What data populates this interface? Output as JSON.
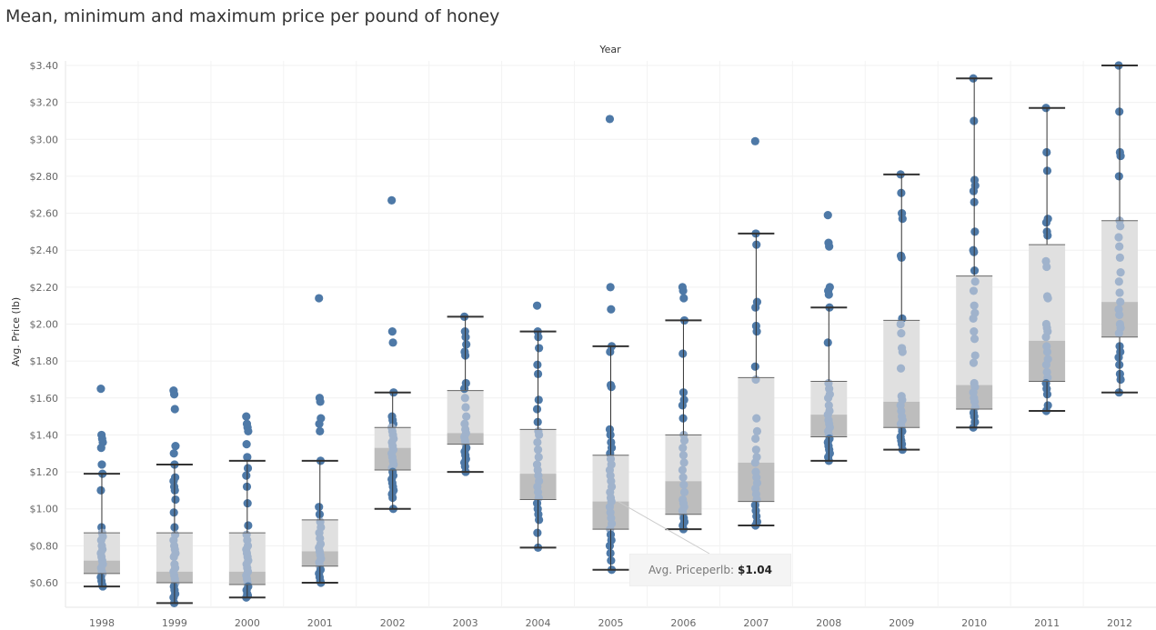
{
  "title": "Mean, minimum and maximum price per pound of honey",
  "tooltip": {
    "label": "Avg. Priceperlb:",
    "value": "$1.04",
    "year": "2005"
  },
  "colors": {
    "dot": "#4e79a7",
    "dot_in_box": "#a0b3cc",
    "box_upper": "#e0e0e0",
    "box_lower": "#bdbdbd",
    "whisker": "#333333",
    "grid": "#f0f0f0"
  },
  "chart_data": {
    "type": "box-plot with jittered points",
    "title": "Mean, minimum and maximum price per pound of honey",
    "top_axis_label": "Year",
    "ylabel": "Avg. Price (lb)",
    "ylim": [
      0.48,
      3.42
    ],
    "y_ticks": [
      "$0.60",
      "$0.80",
      "$1.00",
      "$1.20",
      "$1.40",
      "$1.60",
      "$1.80",
      "$2.00",
      "$2.20",
      "$2.40",
      "$2.60",
      "$2.80",
      "$3.00",
      "$3.20",
      "$3.40"
    ],
    "y_tick_values": [
      0.6,
      0.8,
      1.0,
      1.2,
      1.4,
      1.6,
      1.8,
      2.0,
      2.2,
      2.4,
      2.6,
      2.8,
      3.0,
      3.2,
      3.4
    ],
    "grid": true,
    "categories": [
      "1998",
      "1999",
      "2000",
      "2001",
      "2002",
      "2003",
      "2004",
      "2005",
      "2006",
      "2007",
      "2008",
      "2009",
      "2010",
      "2011",
      "2012"
    ],
    "boxes": [
      {
        "year": "1998",
        "whisker_low": 0.58,
        "q1": 0.65,
        "median": 0.72,
        "q3": 0.87,
        "whisker_high": 1.19
      },
      {
        "year": "1999",
        "whisker_low": 0.49,
        "q1": 0.6,
        "median": 0.66,
        "q3": 0.87,
        "whisker_high": 1.24
      },
      {
        "year": "2000",
        "whisker_low": 0.52,
        "q1": 0.59,
        "median": 0.66,
        "q3": 0.87,
        "whisker_high": 1.26
      },
      {
        "year": "2001",
        "whisker_low": 0.6,
        "q1": 0.69,
        "median": 0.77,
        "q3": 0.94,
        "whisker_high": 1.26
      },
      {
        "year": "2002",
        "whisker_low": 1.0,
        "q1": 1.21,
        "median": 1.33,
        "q3": 1.44,
        "whisker_high": 1.63
      },
      {
        "year": "2003",
        "whisker_low": 1.2,
        "q1": 1.35,
        "median": 1.41,
        "q3": 1.64,
        "whisker_high": 2.04
      },
      {
        "year": "2004",
        "whisker_low": 0.79,
        "q1": 1.05,
        "median": 1.19,
        "q3": 1.43,
        "whisker_high": 1.96
      },
      {
        "year": "2005",
        "whisker_low": 0.67,
        "q1": 0.89,
        "median": 1.04,
        "q3": 1.29,
        "whisker_high": 1.88
      },
      {
        "year": "2006",
        "whisker_low": 0.89,
        "q1": 0.97,
        "median": 1.15,
        "q3": 1.4,
        "whisker_high": 2.02
      },
      {
        "year": "2007",
        "whisker_low": 0.91,
        "q1": 1.04,
        "median": 1.25,
        "q3": 1.71,
        "whisker_high": 2.49
      },
      {
        "year": "2008",
        "whisker_low": 1.26,
        "q1": 1.39,
        "median": 1.51,
        "q3": 1.69,
        "whisker_high": 2.09
      },
      {
        "year": "2009",
        "whisker_low": 1.32,
        "q1": 1.44,
        "median": 1.58,
        "q3": 2.02,
        "whisker_high": 2.81
      },
      {
        "year": "2010",
        "whisker_low": 1.44,
        "q1": 1.54,
        "median": 1.67,
        "q3": 2.26,
        "whisker_high": 3.33
      },
      {
        "year": "2011",
        "whisker_low": 1.53,
        "q1": 1.69,
        "median": 1.91,
        "q3": 2.43,
        "whisker_high": 3.17
      },
      {
        "year": "2012",
        "whisker_low": 1.63,
        "q1": 1.93,
        "median": 2.12,
        "q3": 2.56,
        "whisker_high": 3.4
      }
    ],
    "points": [
      {
        "year": "1998",
        "values": [
          1.65,
          1.4,
          1.38,
          1.36,
          1.33,
          1.24,
          1.19,
          1.1,
          0.9,
          0.87,
          0.85,
          0.83,
          0.8,
          0.78,
          0.76,
          0.74,
          0.72,
          0.7,
          0.68,
          0.66,
          0.65,
          0.63,
          0.61,
          0.59,
          0.58
        ]
      },
      {
        "year": "1999",
        "values": [
          1.64,
          1.62,
          1.54,
          1.34,
          1.3,
          1.24,
          1.17,
          1.15,
          1.12,
          1.1,
          1.05,
          0.98,
          0.9,
          0.86,
          0.83,
          0.8,
          0.78,
          0.76,
          0.74,
          0.7,
          0.68,
          0.66,
          0.64,
          0.62,
          0.6,
          0.58,
          0.56,
          0.54,
          0.52,
          0.49
        ]
      },
      {
        "year": "2000",
        "values": [
          1.5,
          1.46,
          1.44,
          1.42,
          1.35,
          1.28,
          1.22,
          1.18,
          1.12,
          1.03,
          0.91,
          0.86,
          0.83,
          0.8,
          0.78,
          0.76,
          0.74,
          0.72,
          0.7,
          0.68,
          0.66,
          0.64,
          0.62,
          0.6,
          0.58,
          0.56,
          0.54,
          0.53,
          0.52
        ]
      },
      {
        "year": "2001",
        "values": [
          2.14,
          1.6,
          1.58,
          1.49,
          1.46,
          1.42,
          1.26,
          1.01,
          0.97,
          0.93,
          0.9,
          0.87,
          0.84,
          0.81,
          0.79,
          0.77,
          0.75,
          0.73,
          0.71,
          0.69,
          0.67,
          0.65,
          0.63,
          0.61,
          0.6
        ]
      },
      {
        "year": "2002",
        "values": [
          2.67,
          1.96,
          1.9,
          1.63,
          1.5,
          1.48,
          1.46,
          1.44,
          1.42,
          1.4,
          1.38,
          1.36,
          1.34,
          1.32,
          1.3,
          1.28,
          1.26,
          1.24,
          1.22,
          1.2,
          1.18,
          1.16,
          1.14,
          1.12,
          1.1,
          1.08,
          1.06,
          1.0
        ]
      },
      {
        "year": "2003",
        "values": [
          2.04,
          1.96,
          1.93,
          1.89,
          1.85,
          1.83,
          1.68,
          1.65,
          1.6,
          1.55,
          1.5,
          1.46,
          1.43,
          1.41,
          1.39,
          1.37,
          1.35,
          1.33,
          1.31,
          1.29,
          1.27,
          1.25,
          1.23,
          1.2
        ]
      },
      {
        "year": "2004",
        "values": [
          2.1,
          1.96,
          1.93,
          1.87,
          1.78,
          1.73,
          1.59,
          1.54,
          1.47,
          1.42,
          1.4,
          1.36,
          1.32,
          1.28,
          1.24,
          1.21,
          1.18,
          1.15,
          1.12,
          1.09,
          1.06,
          1.03,
          1.0,
          0.97,
          0.94,
          0.87,
          0.79
        ]
      },
      {
        "year": "2005",
        "values": [
          3.11,
          2.2,
          2.08,
          1.88,
          1.85,
          1.67,
          1.66,
          1.43,
          1.4,
          1.36,
          1.33,
          1.3,
          1.27,
          1.24,
          1.21,
          1.18,
          1.15,
          1.12,
          1.09,
          1.06,
          1.04,
          1.01,
          0.98,
          0.95,
          0.92,
          0.89,
          0.86,
          0.83,
          0.8,
          0.76,
          0.72,
          0.67
        ]
      },
      {
        "year": "2006",
        "values": [
          2.2,
          2.18,
          2.14,
          2.02,
          1.84,
          1.63,
          1.59,
          1.56,
          1.49,
          1.4,
          1.37,
          1.33,
          1.29,
          1.25,
          1.21,
          1.17,
          1.13,
          1.09,
          1.05,
          1.03,
          1.01,
          0.99,
          0.97,
          0.95,
          0.93,
          0.91,
          0.89
        ]
      },
      {
        "year": "2007",
        "values": [
          2.99,
          2.49,
          2.43,
          2.12,
          2.09,
          1.99,
          1.96,
          1.77,
          1.7,
          1.49,
          1.42,
          1.38,
          1.32,
          1.28,
          1.25,
          1.2,
          1.17,
          1.14,
          1.11,
          1.08,
          1.05,
          1.02,
          0.99,
          0.96,
          0.93,
          0.91
        ]
      },
      {
        "year": "2008",
        "values": [
          2.59,
          2.44,
          2.42,
          2.2,
          2.18,
          2.16,
          2.09,
          1.9,
          1.68,
          1.65,
          1.62,
          1.6,
          1.56,
          1.53,
          1.51,
          1.48,
          1.46,
          1.44,
          1.42,
          1.4,
          1.38,
          1.36,
          1.34,
          1.32,
          1.3,
          1.28,
          1.26
        ]
      },
      {
        "year": "2009",
        "values": [
          2.81,
          2.71,
          2.6,
          2.57,
          2.37,
          2.36,
          2.03,
          2.0,
          1.95,
          1.87,
          1.85,
          1.76,
          1.61,
          1.59,
          1.56,
          1.53,
          1.5,
          1.48,
          1.46,
          1.44,
          1.42,
          1.39,
          1.37,
          1.35,
          1.32
        ]
      },
      {
        "year": "2010",
        "values": [
          3.33,
          3.1,
          2.78,
          2.75,
          2.72,
          2.66,
          2.5,
          2.4,
          2.39,
          2.29,
          2.23,
          2.18,
          2.1,
          2.06,
          2.03,
          1.96,
          1.92,
          1.83,
          1.79,
          1.68,
          1.66,
          1.63,
          1.6,
          1.58,
          1.55,
          1.52,
          1.5,
          1.47,
          1.44
        ]
      },
      {
        "year": "2011",
        "values": [
          3.17,
          2.93,
          2.83,
          2.57,
          2.55,
          2.5,
          2.48,
          2.34,
          2.31,
          2.15,
          2.14,
          2.0,
          1.98,
          1.96,
          1.93,
          1.88,
          1.85,
          1.81,
          1.78,
          1.74,
          1.71,
          1.68,
          1.65,
          1.62,
          1.56,
          1.53
        ]
      },
      {
        "year": "2012",
        "values": [
          3.4,
          3.15,
          2.93,
          2.91,
          2.8,
          2.56,
          2.53,
          2.47,
          2.42,
          2.36,
          2.28,
          2.23,
          2.17,
          2.12,
          2.08,
          2.05,
          2.0,
          1.98,
          1.95,
          1.88,
          1.85,
          1.82,
          1.78,
          1.73,
          1.7,
          1.63
        ]
      }
    ]
  }
}
